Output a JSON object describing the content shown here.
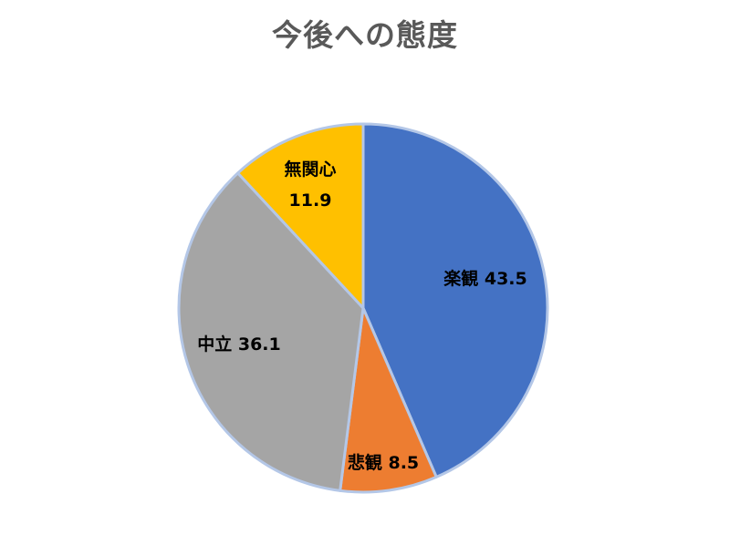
{
  "chart_data": {
    "type": "pie",
    "title": "今後への態度",
    "slices": [
      {
        "label": "楽観",
        "value": 43.5,
        "value_text": "43.5",
        "color": "#4472c4"
      },
      {
        "label": "悲観",
        "value": 8.5,
        "value_text": "8.5",
        "color": "#ed7d31"
      },
      {
        "label": "中立",
        "value": 36.1,
        "value_text": "36.1",
        "color": "#a5a5a5"
      },
      {
        "label": "無関心",
        "value": 11.9,
        "value_text": "11.9",
        "color": "#ffc000"
      }
    ],
    "border_color": "#b4c7e7",
    "legend": "none"
  }
}
